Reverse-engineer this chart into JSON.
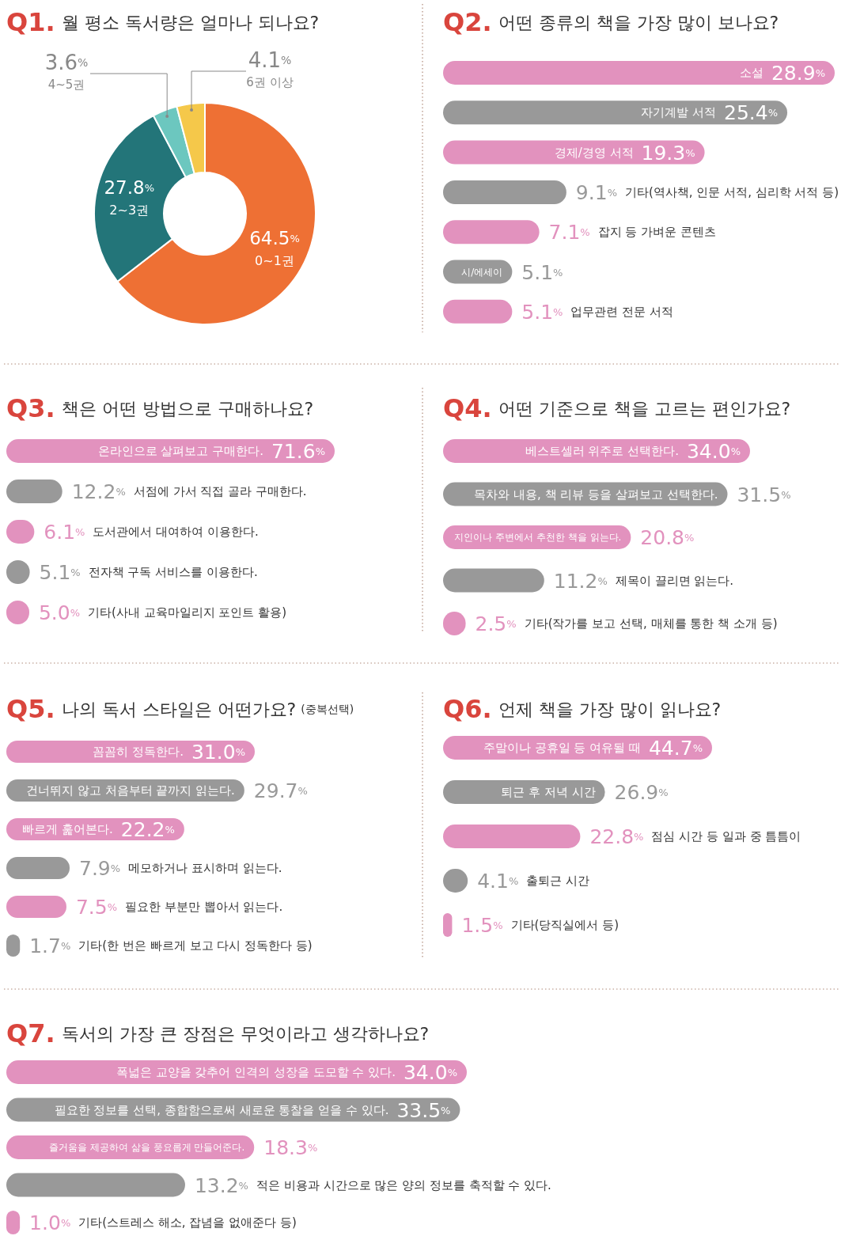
{
  "chart_data": [
    {
      "type": "donut",
      "title": "Q1. 월 평소 독서량은 얼마나 되나요?",
      "categories": [
        "0~1권",
        "2~3권",
        "4~5권",
        "6권 이상"
      ],
      "values": [
        64.5,
        27.8,
        3.6,
        4.1
      ],
      "colors": [
        "#ee7034",
        "#237579",
        "#6cc7bf",
        "#f5c84a"
      ],
      "value_labels": [
        "64.5%",
        "27.8%",
        "3.6%",
        "4.1%"
      ]
    },
    {
      "type": "bar",
      "orientation": "horizontal",
      "title": "Q2. 어떤 종류의 책을 가장 많이 보나요?",
      "categories": [
        "소설",
        "자기계발 서적",
        "경제/경영 서적",
        "기타(역사책, 인문 서적, 심리학 서적 등)",
        "잡지 등 가벼운 콘텐츠",
        "시/에세이",
        "업무관련 전문 서적"
      ],
      "values": [
        28.9,
        25.4,
        19.3,
        9.1,
        7.1,
        5.1,
        5.1
      ],
      "colors": [
        "#e292be",
        "#999999",
        "#e292be",
        "#999999",
        "#e292be",
        "#999999",
        "#e292be"
      ],
      "value_labels": [
        "28.9%",
        "25.4%",
        "19.3%",
        "9.1%",
        "7.1%",
        "5.1%",
        "5.1%"
      ]
    },
    {
      "type": "bar",
      "orientation": "horizontal",
      "title": "Q3. 책은 어떤 방법으로 구매하나요?",
      "categories": [
        "온라인으로 살펴보고 구매한다.",
        "서점에 가서 직접 골라 구매한다.",
        "도서관에서 대여하여 이용한다.",
        "전자책 구독 서비스를 이용한다.",
        "기타(사내 교육마일리지 포인트 활용)"
      ],
      "values": [
        71.6,
        12.2,
        6.1,
        5.1,
        5.0
      ],
      "colors": [
        "#e292be",
        "#999999",
        "#e292be",
        "#999999",
        "#e292be"
      ],
      "value_labels": [
        "71.6%",
        "12.2%",
        "6.1%",
        "5.1%",
        "5.0%"
      ]
    },
    {
      "type": "bar",
      "orientation": "horizontal",
      "title": "Q4. 어떤 기준으로 책을 고르는 편인가요?",
      "categories": [
        "베스트셀러 위주로 선택한다.",
        "목차와 내용, 책 리뷰 등을 살펴보고 선택한다.",
        "지인이나 주변에서 추천한 책을 읽는다.",
        "제목이 끌리면 읽는다.",
        "기타(작가를 보고 선택, 매체를 통한 책 소개 등)"
      ],
      "values": [
        34.0,
        31.5,
        20.8,
        11.2,
        2.5
      ],
      "colors": [
        "#e292be",
        "#999999",
        "#e292be",
        "#999999",
        "#e292be"
      ],
      "value_labels": [
        "34.0%",
        "31.5%",
        "20.8%",
        "11.2%",
        "2.5%"
      ]
    },
    {
      "type": "bar",
      "orientation": "horizontal",
      "title": "Q5. 나의 독서 스타일은 어떤가요?",
      "subtitle": "(중복선택)",
      "categories": [
        "꼼꼼히 정독한다.",
        "건너뛰지 않고 처음부터 끝까지 읽는다.",
        "빠르게 훑어본다.",
        "메모하거나 표시하며 읽는다.",
        "필요한 부분만 뽑아서 읽는다.",
        "기타(한 번은 빠르게 보고 다시 정독한다 등)"
      ],
      "values": [
        31.0,
        29.7,
        22.2,
        7.9,
        7.5,
        1.7
      ],
      "colors": [
        "#e292be",
        "#999999",
        "#e292be",
        "#999999",
        "#e292be",
        "#999999"
      ],
      "value_labels": [
        "31.0%",
        "29.7%",
        "22.2%",
        "7.9%",
        "7.5%",
        "1.7%"
      ]
    },
    {
      "type": "bar",
      "orientation": "horizontal",
      "title": "Q6. 언제 책을 가장 많이 읽나요?",
      "categories": [
        "주말이나 공휴일 등 여유될 때",
        "퇴근 후 저녁 시간",
        "점심 시간 등 일과 중 틈틈이",
        "출퇴근 시간",
        "기타(당직실에서 등)"
      ],
      "values": [
        44.7,
        26.9,
        22.8,
        4.1,
        1.5
      ],
      "colors": [
        "#e292be",
        "#999999",
        "#e292be",
        "#999999",
        "#e292be"
      ],
      "value_labels": [
        "44.7%",
        "26.9%",
        "22.8%",
        "4.1%",
        "1.5%"
      ]
    },
    {
      "type": "bar",
      "orientation": "horizontal",
      "title": "Q7. 독서의 가장 큰 장점은 무엇이라고 생각하나요?",
      "categories": [
        "폭넓은 교양을 갖추어 인격의 성장을 도모할 수 있다.",
        "필요한 정보를 선택, 종합함으로써 새로운 통찰을 얻을 수 있다.",
        "즐거움을 제공하여 삶을 풍요롭게 만들어준다.",
        "적은 비용과 시간으로 많은 양의 정보를 축적할 수 있다.",
        "기타(스트레스 해소, 잡념을 없애준다 등)"
      ],
      "values": [
        34.0,
        33.5,
        18.3,
        13.2,
        1.0
      ],
      "colors": [
        "#e292be",
        "#999999",
        "#e292be",
        "#999999",
        "#e292be"
      ],
      "value_labels": [
        "34.0%",
        "33.5%",
        "18.3%",
        "13.2%",
        "1.0%"
      ]
    }
  ]
}
